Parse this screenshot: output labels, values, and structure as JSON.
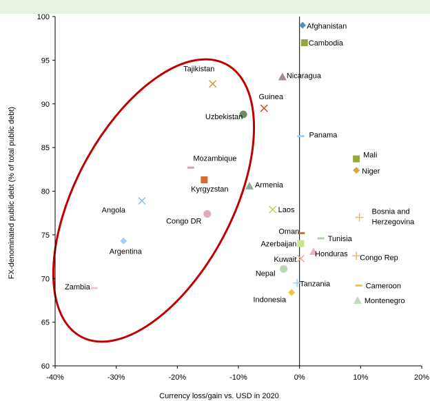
{
  "chart_data": {
    "type": "scatter",
    "title": "",
    "xlabel": "Currency loss/gain vs. USD in 2020",
    "ylabel": "FX-denominated public debt (% of total public debt)",
    "xlim": [
      -40,
      20
    ],
    "ylim": [
      60,
      100
    ],
    "x_ticks": [
      {
        "value": -40,
        "label": "-40%"
      },
      {
        "value": -30,
        "label": "-30%"
      },
      {
        "value": -20,
        "label": "-20%"
      },
      {
        "value": -10,
        "label": "-10%"
      },
      {
        "value": 0,
        "label": "0%"
      },
      {
        "value": 10,
        "label": "10%"
      },
      {
        "value": 20,
        "label": "20%"
      }
    ],
    "y_ticks": [
      {
        "value": 60,
        "label": "60"
      },
      {
        "value": 65,
        "label": "65"
      },
      {
        "value": 70,
        "label": "70"
      },
      {
        "value": 75,
        "label": "75"
      },
      {
        "value": 80,
        "label": "80"
      },
      {
        "value": 85,
        "label": "85"
      },
      {
        "value": 90,
        "label": "90"
      },
      {
        "value": 95,
        "label": "95"
      },
      {
        "value": 100,
        "label": "100"
      }
    ],
    "grid": false,
    "highlight_ellipse_color": "#c00000",
    "points": [
      {
        "label": "Afghanistan",
        "x": 0.5,
        "y": 99.0,
        "marker": "diamond",
        "color": "#5b8db3"
      },
      {
        "label": "Cambodia",
        "x": 0.8,
        "y": 97.0,
        "marker": "square",
        "color": "#93a83e"
      },
      {
        "label": "Nicaragua",
        "x": -2.8,
        "y": 93.1,
        "marker": "triangle",
        "color": "#a88894"
      },
      {
        "label": "Tajikistan",
        "x": -14.2,
        "y": 92.3,
        "marker": "x",
        "color": "#c8963c"
      },
      {
        "label": "Guinea",
        "x": -5.8,
        "y": 89.5,
        "marker": "x",
        "color": "#c0522b"
      },
      {
        "label": "Uzbekistan",
        "x": -9.2,
        "y": 88.8,
        "marker": "circle",
        "color": "#6e8c6a"
      },
      {
        "label": "Panama",
        "x": 0.2,
        "y": 86.3,
        "marker": "dash",
        "color": "#a7cce6"
      },
      {
        "label": "Mali",
        "x": 9.3,
        "y": 83.7,
        "marker": "square",
        "color": "#93a83e"
      },
      {
        "label": "Mozambique",
        "x": -17.8,
        "y": 82.7,
        "marker": "dash",
        "color": "#d3a2b3"
      },
      {
        "label": "Niger",
        "x": 9.3,
        "y": 82.4,
        "marker": "diamond",
        "color": "#d8a43c"
      },
      {
        "label": "Kyrgyzstan",
        "x": -15.6,
        "y": 81.3,
        "marker": "square",
        "color": "#d96a2b"
      },
      {
        "label": "Armenia",
        "x": -8.2,
        "y": 80.6,
        "marker": "triangle",
        "color": "#8fac8e"
      },
      {
        "label": "Angola",
        "x": -25.8,
        "y": 78.9,
        "marker": "x",
        "color": "#8dc1e8"
      },
      {
        "label": "Laos",
        "x": -4.4,
        "y": 77.9,
        "marker": "x",
        "color": "#b3d65a"
      },
      {
        "label": "Congo DR",
        "x": -15.1,
        "y": 77.4,
        "marker": "circle",
        "color": "#e0a9bd"
      },
      {
        "label": "Bosnia and Herzegovina",
        "x": 9.8,
        "y": 77.0,
        "marker": "plus",
        "color": "#f0b45a"
      },
      {
        "label": "Oman",
        "x": 0.3,
        "y": 75.2,
        "marker": "dash",
        "color": "#d96a2b"
      },
      {
        "label": "Tunisia",
        "x": 3.5,
        "y": 74.6,
        "marker": "dash",
        "color": "#a9d3a6"
      },
      {
        "label": "Argentina",
        "x": -28.8,
        "y": 74.3,
        "marker": "diamond",
        "color": "#9fd1f3"
      },
      {
        "label": "Azerbaijan",
        "x": 0.2,
        "y": 74.0,
        "marker": "square",
        "color": "#c9e48a"
      },
      {
        "label": "Honduras",
        "x": 2.3,
        "y": 73.1,
        "marker": "triangle",
        "color": "#efb3c4"
      },
      {
        "label": "Congo Rep",
        "x": 9.3,
        "y": 72.6,
        "marker": "plus",
        "color": "#f0b45a"
      },
      {
        "label": "Kuwait",
        "x": 0.2,
        "y": 72.3,
        "marker": "x",
        "color": "#f0a58a"
      },
      {
        "label": "Nepal",
        "x": -2.6,
        "y": 71.1,
        "marker": "circle",
        "color": "#bcd6b3"
      },
      {
        "label": "Cameroon",
        "x": 9.7,
        "y": 69.2,
        "marker": "dash",
        "color": "#f0c24a"
      },
      {
        "label": "Tanzania",
        "x": -0.4,
        "y": 69.5,
        "marker": "plus",
        "color": "#9fd1f3"
      },
      {
        "label": "Zambia",
        "x": -33.6,
        "y": 68.9,
        "marker": "dash",
        "color": "#efc6d2"
      },
      {
        "label": "Indonesia",
        "x": -1.3,
        "y": 68.4,
        "marker": "diamond",
        "color": "#f0c24a"
      },
      {
        "label": "Montenegro",
        "x": 9.5,
        "y": 67.5,
        "marker": "triangle",
        "color": "#c6d9c3"
      }
    ]
  }
}
